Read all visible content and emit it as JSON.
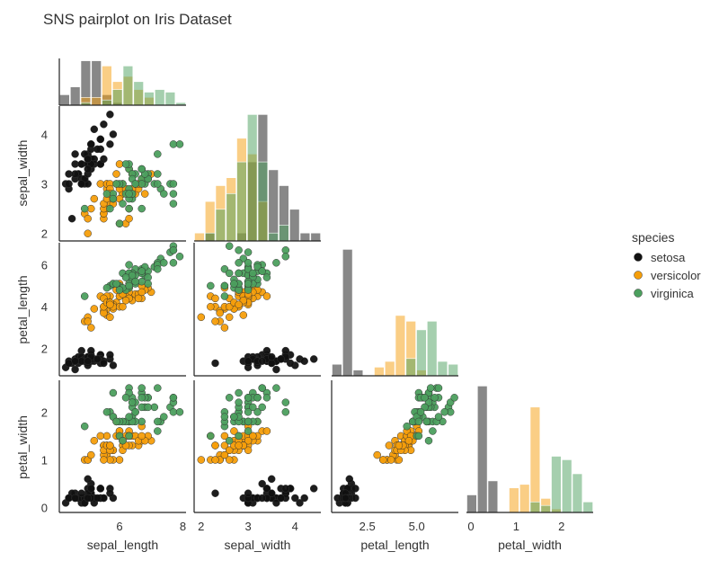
{
  "title": "SNS pairplot on Iris Dataset",
  "chart_data": {
    "type": "scatter",
    "subtype": "pairplot-corner",
    "title": "SNS pairplot on Iris Dataset",
    "variables": [
      "sepal_length",
      "sepal_width",
      "petal_length",
      "petal_width"
    ],
    "legend": {
      "title": "species",
      "position": "right",
      "entries": [
        {
          "name": "setosa",
          "color": "#111111"
        },
        {
          "name": "versicolor",
          "color": "#f59e0b"
        },
        {
          "name": "virginica",
          "color": "#4c9f5e"
        }
      ]
    },
    "grid": false,
    "axes": {
      "sepal_length": {
        "range": [
          4.1,
          8.1
        ],
        "ticks": [
          6,
          8
        ],
        "tick_labels": [
          "6",
          "8"
        ]
      },
      "sepal_width": {
        "range": [
          1.85,
          4.55
        ],
        "ticks": [
          2,
          3,
          4
        ],
        "tick_labels": [
          "2",
          "3",
          "4"
        ]
      },
      "petal_length": {
        "range": [
          0.7,
          7.1
        ],
        "ticks": [
          2.5,
          5.0
        ],
        "tick_labels": [
          "2.5",
          "5.0"
        ],
        "row_ticks": [
          2,
          4,
          6
        ],
        "row_tick_labels": [
          "2",
          "4",
          "6"
        ]
      },
      "petal_width": {
        "range": [
          -0.1,
          2.7
        ],
        "ticks": [
          0,
          1,
          2
        ],
        "tick_labels": [
          "0",
          "1",
          "2"
        ]
      }
    },
    "species": [
      {
        "name": "setosa",
        "sepal_length": [
          5.1,
          4.9,
          4.7,
          4.6,
          5.0,
          5.4,
          4.6,
          5.0,
          4.4,
          4.9,
          5.4,
          4.8,
          4.8,
          4.3,
          5.8,
          5.7,
          5.4,
          5.1,
          5.7,
          5.1,
          5.4,
          5.1,
          4.6,
          5.1,
          4.8,
          5.0,
          5.0,
          5.2,
          5.2,
          4.7,
          4.8,
          5.4,
          5.2,
          5.5,
          4.9,
          5.0,
          5.5,
          4.9,
          4.4,
          5.1,
          5.0,
          4.5,
          4.4,
          5.0,
          5.1,
          4.8,
          5.1,
          4.6,
          5.3,
          5.0
        ],
        "sepal_width": [
          3.5,
          3.0,
          3.2,
          3.1,
          3.6,
          3.9,
          3.4,
          3.4,
          2.9,
          3.1,
          3.7,
          3.4,
          3.0,
          3.0,
          4.0,
          4.4,
          3.9,
          3.5,
          3.8,
          3.8,
          3.4,
          3.7,
          3.6,
          3.3,
          3.4,
          3.0,
          3.4,
          3.5,
          3.4,
          3.2,
          3.1,
          3.4,
          4.1,
          4.2,
          3.1,
          3.2,
          3.5,
          3.6,
          3.0,
          3.4,
          3.5,
          2.3,
          3.2,
          3.5,
          3.8,
          3.0,
          3.8,
          3.2,
          3.7,
          3.3
        ],
        "petal_length": [
          1.4,
          1.4,
          1.3,
          1.5,
          1.4,
          1.7,
          1.4,
          1.5,
          1.4,
          1.5,
          1.5,
          1.6,
          1.4,
          1.1,
          1.2,
          1.5,
          1.3,
          1.4,
          1.7,
          1.5,
          1.7,
          1.5,
          1.0,
          1.7,
          1.9,
          1.6,
          1.6,
          1.5,
          1.4,
          1.6,
          1.6,
          1.5,
          1.5,
          1.4,
          1.5,
          1.2,
          1.3,
          1.4,
          1.3,
          1.5,
          1.3,
          1.3,
          1.3,
          1.6,
          1.9,
          1.4,
          1.6,
          1.4,
          1.5,
          1.4
        ],
        "petal_width": [
          0.2,
          0.2,
          0.2,
          0.2,
          0.2,
          0.4,
          0.3,
          0.2,
          0.2,
          0.1,
          0.2,
          0.2,
          0.1,
          0.1,
          0.2,
          0.4,
          0.4,
          0.3,
          0.3,
          0.3,
          0.2,
          0.4,
          0.2,
          0.5,
          0.2,
          0.2,
          0.4,
          0.2,
          0.2,
          0.2,
          0.2,
          0.4,
          0.1,
          0.2,
          0.2,
          0.2,
          0.2,
          0.1,
          0.2,
          0.2,
          0.3,
          0.3,
          0.2,
          0.6,
          0.4,
          0.3,
          0.2,
          0.2,
          0.2,
          0.2
        ]
      },
      {
        "name": "versicolor",
        "sepal_length": [
          7.0,
          6.4,
          6.9,
          5.5,
          6.5,
          5.7,
          6.3,
          4.9,
          6.6,
          5.2,
          5.0,
          5.9,
          6.0,
          6.1,
          5.6,
          6.7,
          5.6,
          5.8,
          6.2,
          5.6,
          5.9,
          6.1,
          6.3,
          6.1,
          6.4,
          6.6,
          6.8,
          6.7,
          6.0,
          5.7,
          5.5,
          5.5,
          5.8,
          6.0,
          5.4,
          6.0,
          6.7,
          6.3,
          5.6,
          5.5,
          5.5,
          6.1,
          5.8,
          5.0,
          5.6,
          5.7,
          5.7,
          6.2,
          5.1,
          5.7
        ],
        "sepal_width": [
          3.2,
          3.2,
          3.1,
          2.3,
          2.8,
          2.8,
          3.3,
          2.4,
          2.9,
          2.7,
          2.0,
          3.0,
          2.2,
          2.9,
          2.9,
          3.1,
          3.0,
          2.7,
          2.2,
          2.5,
          3.2,
          2.8,
          2.5,
          2.8,
          2.9,
          3.0,
          2.8,
          3.0,
          2.9,
          2.6,
          2.4,
          2.4,
          2.7,
          2.7,
          3.0,
          3.4,
          3.1,
          2.3,
          3.0,
          2.5,
          2.6,
          3.0,
          2.6,
          2.3,
          2.7,
          3.0,
          2.9,
          2.9,
          2.5,
          2.8
        ],
        "petal_length": [
          4.7,
          4.5,
          4.9,
          4.0,
          4.6,
          4.5,
          4.7,
          3.3,
          4.6,
          3.9,
          3.5,
          4.2,
          4.0,
          4.7,
          3.6,
          4.4,
          4.5,
          4.1,
          4.5,
          3.9,
          4.8,
          4.0,
          4.9,
          4.7,
          4.3,
          4.4,
          4.8,
          5.0,
          4.5,
          3.5,
          3.8,
          3.7,
          3.9,
          5.1,
          4.5,
          4.5,
          4.7,
          4.4,
          4.1,
          4.0,
          4.4,
          4.6,
          4.0,
          3.3,
          4.2,
          4.2,
          4.2,
          4.3,
          3.0,
          4.1
        ],
        "petal_width": [
          1.4,
          1.5,
          1.5,
          1.3,
          1.5,
          1.3,
          1.6,
          1.0,
          1.3,
          1.4,
          1.0,
          1.5,
          1.0,
          1.4,
          1.3,
          1.4,
          1.5,
          1.0,
          1.5,
          1.1,
          1.8,
          1.3,
          1.5,
          1.2,
          1.3,
          1.4,
          1.4,
          1.7,
          1.5,
          1.0,
          1.1,
          1.0,
          1.2,
          1.6,
          1.5,
          1.6,
          1.5,
          1.3,
          1.3,
          1.3,
          1.2,
          1.4,
          1.2,
          1.0,
          1.3,
          1.2,
          1.3,
          1.3,
          1.1,
          1.3
        ]
      },
      {
        "name": "virginica",
        "sepal_length": [
          6.3,
          5.8,
          7.1,
          6.3,
          6.5,
          7.6,
          4.9,
          7.3,
          6.7,
          7.2,
          6.5,
          6.4,
          6.8,
          5.7,
          5.8,
          6.4,
          6.5,
          7.7,
          7.7,
          6.0,
          6.9,
          5.6,
          7.7,
          6.3,
          6.7,
          7.2,
          6.2,
          6.1,
          6.4,
          7.2,
          7.4,
          7.9,
          6.4,
          6.3,
          6.1,
          7.7,
          6.3,
          6.4,
          6.0,
          6.9,
          6.7,
          6.9,
          5.8,
          6.8,
          6.7,
          6.7,
          6.3,
          6.5,
          6.2,
          5.9
        ],
        "sepal_width": [
          3.3,
          2.7,
          3.0,
          2.9,
          3.0,
          3.0,
          2.5,
          2.9,
          2.5,
          3.6,
          3.2,
          2.7,
          3.0,
          2.5,
          2.8,
          3.2,
          3.0,
          3.8,
          2.6,
          2.2,
          3.2,
          2.8,
          2.8,
          2.7,
          3.3,
          3.2,
          2.8,
          3.0,
          2.8,
          3.0,
          2.8,
          3.8,
          2.8,
          2.8,
          2.6,
          3.0,
          3.4,
          3.1,
          3.0,
          3.1,
          3.1,
          3.1,
          2.7,
          3.2,
          3.3,
          3.0,
          2.5,
          3.0,
          3.4,
          3.0
        ],
        "petal_length": [
          6.0,
          5.1,
          5.9,
          5.6,
          5.8,
          6.6,
          4.5,
          6.3,
          5.8,
          6.1,
          5.1,
          5.3,
          5.5,
          5.0,
          5.1,
          5.3,
          5.5,
          6.7,
          6.9,
          5.0,
          5.7,
          4.9,
          6.7,
          4.9,
          5.7,
          6.0,
          4.8,
          4.9,
          5.6,
          5.8,
          6.1,
          6.4,
          5.6,
          5.1,
          5.6,
          6.1,
          5.6,
          5.5,
          4.8,
          5.4,
          5.6,
          5.1,
          5.1,
          5.9,
          5.7,
          5.2,
          5.0,
          5.2,
          5.4,
          5.1
        ],
        "petal_width": [
          2.5,
          1.9,
          2.1,
          1.8,
          2.2,
          2.1,
          1.7,
          1.8,
          1.8,
          2.5,
          2.0,
          1.9,
          2.1,
          2.0,
          2.4,
          2.3,
          1.8,
          2.2,
          2.3,
          1.5,
          2.3,
          2.0,
          2.0,
          1.8,
          2.1,
          1.8,
          1.8,
          1.8,
          2.1,
          1.6,
          1.9,
          2.0,
          2.2,
          1.5,
          1.4,
          2.3,
          2.4,
          1.8,
          1.8,
          2.1,
          2.4,
          2.3,
          1.9,
          2.3,
          2.5,
          2.3,
          1.9,
          2.0,
          2.3,
          1.8
        ]
      }
    ]
  }
}
